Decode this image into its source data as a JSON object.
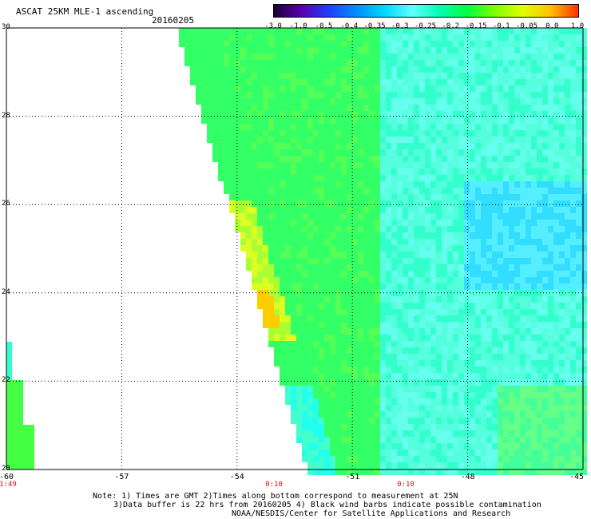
{
  "header": {
    "title": "ASCAT 25KM MLE-1 ascending",
    "date": "20160205"
  },
  "colorbar": {
    "ticks": [
      "-3.0",
      "-1.0",
      "-0.5",
      "-0.4",
      "-0.35",
      "-0.3",
      "-0.25",
      "-0.2",
      "-0.15",
      "-0.1",
      "-0.05",
      "0.0",
      "1.0"
    ],
    "colors": [
      "#1a0033",
      "#5a00b0",
      "#2040ff",
      "#0090ff",
      "#00d8ff",
      "#60ffff",
      "#00ffb0",
      "#00ff40",
      "#80ff00",
      "#e0ff00",
      "#ffc000",
      "#ff3000"
    ]
  },
  "map": {
    "lat_labels": [
      "30",
      "28",
      "26",
      "24",
      "22",
      "20"
    ],
    "lon_labels": [
      "-60",
      "-57",
      "-54",
      "-51",
      "-48",
      "-45"
    ],
    "time_labels": [
      "1:49",
      "0:10",
      "0:10"
    ]
  },
  "notes": {
    "line1": "Note: 1) Times are GMT 2)Times along bottom correspond to measurement at 25N",
    "line2": "3)Data buffer is 22 hrs from 20160205 4) Black wind barbs indicate possible contamination",
    "line3": "NOAA/NESDIS/Center for Satellite Applications and Research"
  }
}
